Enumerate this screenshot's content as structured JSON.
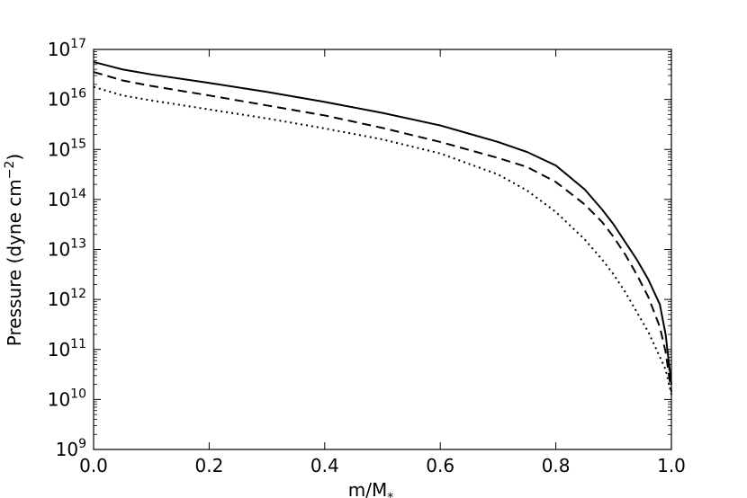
{
  "chart_data": {
    "type": "line",
    "title": "",
    "xlabel": "m/M",
    "xlabel_sub": "*",
    "ylabel": "Pressure (dyne cm",
    "ylabel_sup": "−2",
    "ylabel_close": ")",
    "xlim": [
      0.0,
      1.0
    ],
    "ylim_log10": [
      9,
      17
    ],
    "yscale": "log",
    "grid": false,
    "x_ticks": [
      {
        "value": 0.0,
        "label": "0.0"
      },
      {
        "value": 0.2,
        "label": "0.2"
      },
      {
        "value": 0.4,
        "label": "0.4"
      },
      {
        "value": 0.6,
        "label": "0.6"
      },
      {
        "value": 0.8,
        "label": "0.8"
      },
      {
        "value": 1.0,
        "label": "1.0"
      }
    ],
    "y_ticks": [
      {
        "exp": 9,
        "base": "10",
        "sup": "9"
      },
      {
        "exp": 10,
        "base": "10",
        "sup": "10"
      },
      {
        "exp": 11,
        "base": "10",
        "sup": "11"
      },
      {
        "exp": 12,
        "base": "10",
        "sup": "12"
      },
      {
        "exp": 13,
        "base": "10",
        "sup": "13"
      },
      {
        "exp": 14,
        "base": "10",
        "sup": "14"
      },
      {
        "exp": 15,
        "base": "10",
        "sup": "15"
      },
      {
        "exp": 16,
        "base": "10",
        "sup": "16"
      },
      {
        "exp": 17,
        "base": "10",
        "sup": "17"
      }
    ],
    "series": [
      {
        "style": "solid",
        "color": "#000000",
        "x": [
          0.0,
          0.05,
          0.1,
          0.2,
          0.3,
          0.4,
          0.5,
          0.6,
          0.7,
          0.75,
          0.8,
          0.85,
          0.88,
          0.9,
          0.92,
          0.94,
          0.96,
          0.98,
          0.99,
          1.0
        ],
        "log10_p": [
          16.75,
          16.6,
          16.5,
          16.33,
          16.15,
          15.95,
          15.73,
          15.48,
          15.15,
          14.95,
          14.68,
          14.2,
          13.8,
          13.5,
          13.15,
          12.8,
          12.4,
          11.9,
          11.3,
          10.3
        ]
      },
      {
        "style": "dashed",
        "color": "#000000",
        "x": [
          0.0,
          0.05,
          0.1,
          0.2,
          0.3,
          0.4,
          0.5,
          0.6,
          0.7,
          0.75,
          0.8,
          0.85,
          0.88,
          0.9,
          0.92,
          0.94,
          0.96,
          0.98,
          0.99,
          1.0
        ],
        "log10_p": [
          16.55,
          16.38,
          16.27,
          16.08,
          15.88,
          15.68,
          15.43,
          15.15,
          14.83,
          14.65,
          14.35,
          13.9,
          13.55,
          13.25,
          12.9,
          12.5,
          12.05,
          11.45,
          10.95,
          10.15
        ]
      },
      {
        "style": "dotted",
        "color": "#000000",
        "x": [
          0.0,
          0.05,
          0.1,
          0.2,
          0.3,
          0.4,
          0.5,
          0.6,
          0.7,
          0.75,
          0.8,
          0.85,
          0.88,
          0.9,
          0.92,
          0.94,
          0.96,
          0.98,
          0.99,
          1.0
        ],
        "log10_p": [
          16.25,
          16.08,
          15.98,
          15.8,
          15.62,
          15.42,
          15.2,
          14.92,
          14.5,
          14.18,
          13.75,
          13.2,
          12.8,
          12.5,
          12.15,
          11.75,
          11.35,
          10.85,
          10.6,
          10.1
        ]
      }
    ]
  }
}
